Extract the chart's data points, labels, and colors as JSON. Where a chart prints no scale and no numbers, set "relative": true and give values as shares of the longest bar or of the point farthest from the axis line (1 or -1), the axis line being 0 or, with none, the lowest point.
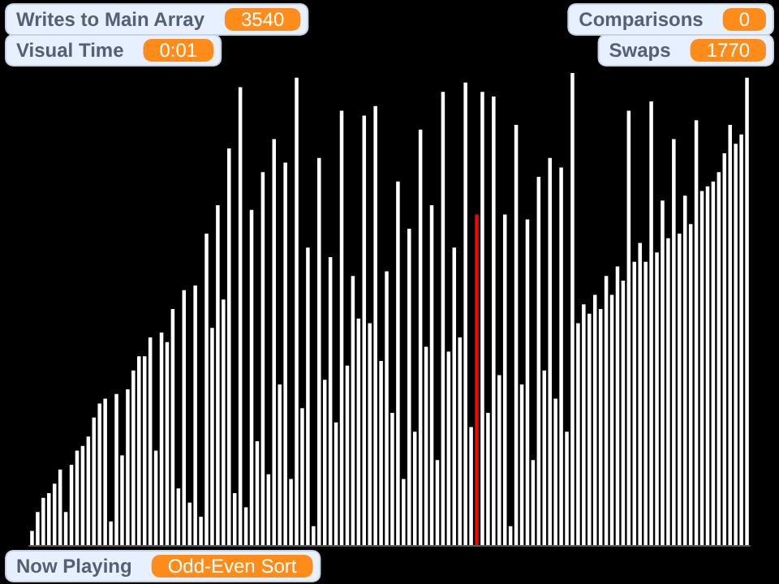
{
  "chart_data": {
    "type": "bar",
    "relative": true,
    "categories": [
      null,
      null,
      null,
      null,
      null,
      null,
      null,
      null,
      null,
      null,
      null,
      null,
      null,
      null,
      null,
      null,
      null,
      null,
      null,
      null,
      null,
      null,
      null,
      null,
      null,
      null,
      null,
      null,
      null,
      null,
      null,
      null,
      null,
      null,
      null,
      null,
      null,
      null,
      null,
      null,
      null,
      null,
      null,
      null,
      null,
      null,
      null,
      null,
      null,
      null,
      null,
      null,
      null,
      null,
      null,
      null,
      null,
      null,
      null,
      null,
      null,
      null,
      null,
      null,
      null,
      null,
      null,
      null,
      null,
      null,
      null,
      null,
      null,
      null,
      null,
      null,
      null,
      null,
      null,
      null,
      null,
      null,
      null,
      null,
      null,
      null,
      null,
      null,
      null,
      null,
      null,
      null,
      null,
      null,
      null,
      null,
      null,
      null,
      null,
      null,
      null,
      null,
      null,
      null,
      null,
      null,
      null,
      null,
      null,
      null,
      null,
      null,
      null,
      null,
      null,
      null,
      null,
      null,
      null,
      null,
      null,
      null,
      null,
      null,
      null,
      null,
      null,
      null
    ],
    "values": [
      0.03,
      0.07,
      0.1,
      0.11,
      0.13,
      0.16,
      0.07,
      0.17,
      0.2,
      0.21,
      0.23,
      0.27,
      0.3,
      0.31,
      0.05,
      0.32,
      0.19,
      0.33,
      0.37,
      0.4,
      0.4,
      0.44,
      0.2,
      0.45,
      0.43,
      0.5,
      0.12,
      0.54,
      0.09,
      0.55,
      0.06,
      0.66,
      0.46,
      0.72,
      0.52,
      0.84,
      0.11,
      0.97,
      0.08,
      0.71,
      0.22,
      0.79,
      0.15,
      0.86,
      0.34,
      0.81,
      0.14,
      0.99,
      0.29,
      0.63,
      0.04,
      0.82,
      0.35,
      0.61,
      0.26,
      0.92,
      0.38,
      0.57,
      0.48,
      0.91,
      0.47,
      0.93,
      0.39,
      0.58,
      0.28,
      0.77,
      0.14,
      0.67,
      0.24,
      0.88,
      0.42,
      0.72,
      0.18,
      0.96,
      0.41,
      0.63,
      0.44,
      0.98,
      0.25,
      0.7,
      0.96,
      0.28,
      0.95,
      0.36,
      0.7,
      0.04,
      0.89,
      0.34,
      0.69,
      0.18,
      0.78,
      0.37,
      0.82,
      0.31,
      0.8,
      0.24,
      1,
      0.47,
      0.51,
      0.49,
      0.53,
      0.5,
      0.57,
      0.53,
      0.59,
      0.56,
      0.92,
      0.6,
      0.64,
      0.6,
      0.94,
      0.62,
      0.73,
      0.65,
      0.86,
      0.66,
      0.74,
      0.68,
      0.9,
      0.75,
      0.76,
      0.77,
      0.79,
      0.83,
      0.89,
      0.85,
      0.87,
      0.99
    ],
    "colors": [
      "#ffffff",
      "#ffffff",
      "#ffffff",
      "#ffffff",
      "#ffffff",
      "#ffffff",
      "#ffffff",
      "#ffffff",
      "#ffffff",
      "#ffffff",
      "#ffffff",
      "#ffffff",
      "#ffffff",
      "#ffffff",
      "#ffffff",
      "#ffffff",
      "#ffffff",
      "#ffffff",
      "#ffffff",
      "#ffffff",
      "#ffffff",
      "#ffffff",
      "#ffffff",
      "#ffffff",
      "#ffffff",
      "#ffffff",
      "#ffffff",
      "#ffffff",
      "#ffffff",
      "#ffffff",
      "#ffffff",
      "#ffffff",
      "#ffffff",
      "#ffffff",
      "#ffffff",
      "#ffffff",
      "#ffffff",
      "#ffffff",
      "#ffffff",
      "#ffffff",
      "#ffffff",
      "#ffffff",
      "#ffffff",
      "#ffffff",
      "#ffffff",
      "#ffffff",
      "#ffffff",
      "#ffffff",
      "#ffffff",
      "#ffffff",
      "#ffffff",
      "#ffffff",
      "#ffffff",
      "#ffffff",
      "#ffffff",
      "#ffffff",
      "#ffffff",
      "#ffffff",
      "#ffffff",
      "#ffffff",
      "#ffffff",
      "#ffffff",
      "#ffffff",
      "#ffffff",
      "#ffffff",
      "#ffffff",
      "#ffffff",
      "#ffffff",
      "#ffffff",
      "#ffffff",
      "#ffffff",
      "#ffffff",
      "#ffffff",
      "#ffffff",
      "#ffffff",
      "#ffffff",
      "#ffffff",
      "#ffffff",
      "#ffffff",
      "#ff0000",
      "#ffffff",
      "#ffffff",
      "#ffffff",
      "#ffffff",
      "#ffffff",
      "#ffffff",
      "#ffffff",
      "#ffffff",
      "#ffffff",
      "#ffffff",
      "#ffffff",
      "#ffffff",
      "#ffffff",
      "#ffffff",
      "#ffffff",
      "#ffffff",
      "#ffffff",
      "#ffffff",
      "#ffffff",
      "#ffffff",
      "#ffffff",
      "#ffffff",
      "#ffffff",
      "#ffffff",
      "#ffffff",
      "#ffffff",
      "#ffffff",
      "#ffffff",
      "#ffffff",
      "#ffffff",
      "#ffffff",
      "#ffffff",
      "#ffffff",
      "#ffffff",
      "#ffffff",
      "#ffffff",
      "#ffffff",
      "#ffffff",
      "#ffffff",
      "#ffffff",
      "#ffffff",
      "#ffffff",
      "#ffffff",
      "#ffffff",
      "#ffffff",
      "#ffffff",
      "#ffffff",
      "#ffffff"
    ],
    "annotations": [
      "Writes to Main Array",
      "3540",
      "Visual Time",
      "0:01",
      "Comparisons",
      "0",
      "Swaps",
      "1770",
      "Now Playing",
      "Odd-Even Sort"
    ]
  }
}
